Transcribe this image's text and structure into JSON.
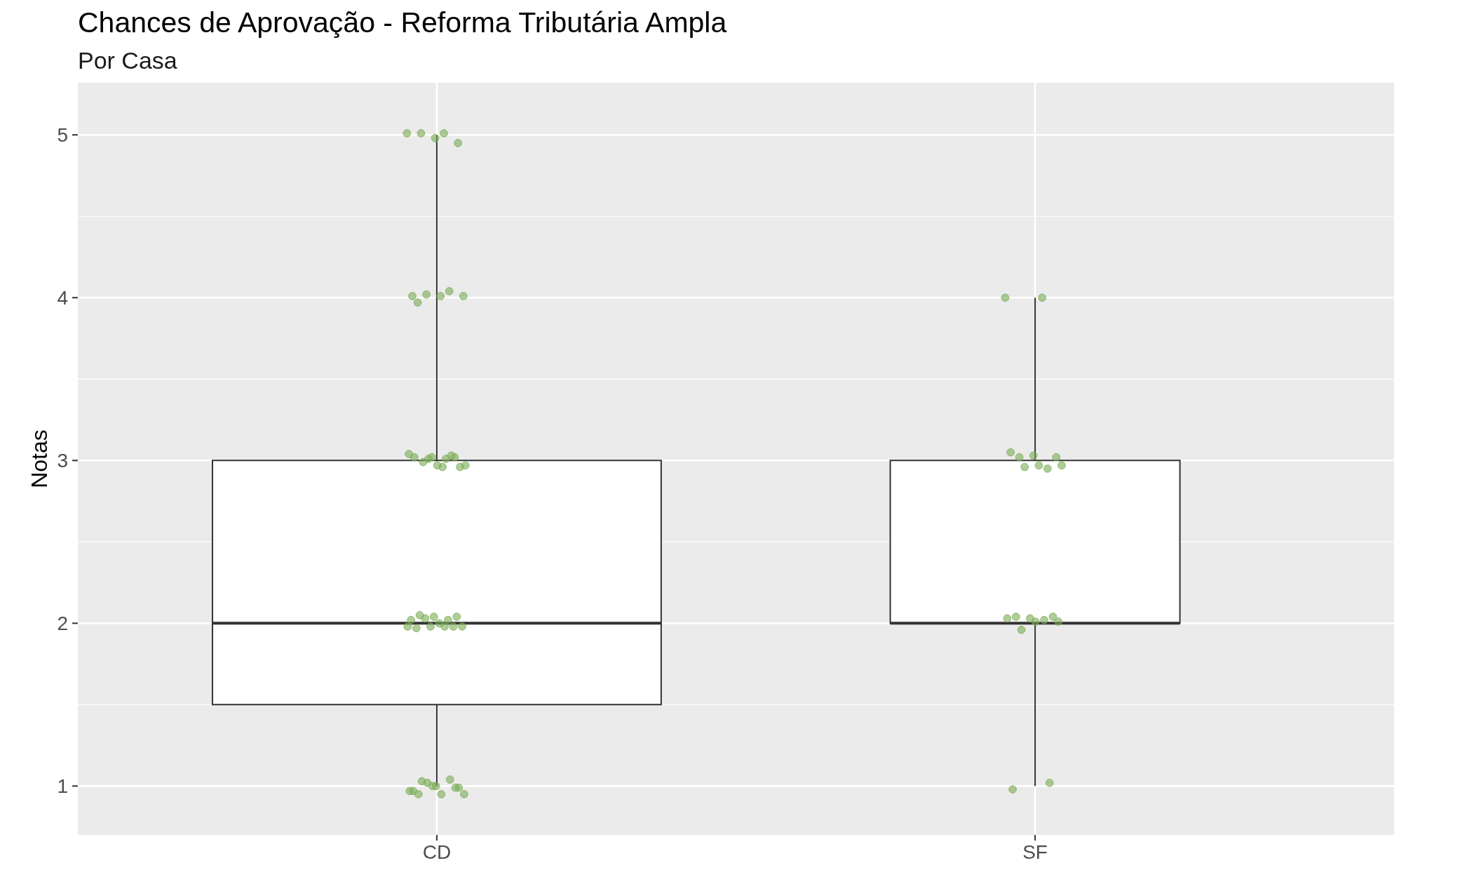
{
  "chart_data": {
    "type": "box",
    "title": "Chances de Aprovação - Reforma Tributária Ampla",
    "subtitle": "Por Casa",
    "ylabel": "Notas",
    "categories": [
      "CD",
      "SF"
    ],
    "boxes": [
      {
        "low": 1,
        "q1": 1.5,
        "median": 2,
        "q3": 3,
        "high": 5
      },
      {
        "low": 1,
        "q1": 2,
        "median": 2,
        "q3": 3,
        "high": 4
      }
    ],
    "series": [
      {
        "type": "scatter",
        "color": "#7aab55",
        "x": [
          "CD",
          "CD",
          "CD",
          "CD",
          "CD",
          "CD",
          "CD",
          "CD",
          "CD",
          "CD",
          "CD",
          "CD",
          "CD",
          "CD",
          "CD",
          "CD",
          "CD",
          "CD",
          "CD",
          "CD",
          "CD",
          "CD",
          "CD",
          "CD",
          "CD",
          "CD",
          "CD",
          "CD",
          "CD",
          "CD",
          "CD",
          "CD",
          "CD",
          "CD",
          "CD",
          "CD",
          "CD",
          "CD",
          "CD",
          "CD",
          "CD",
          "CD",
          "CD",
          "CD",
          "CD",
          "CD",
          "CD",
          "CD",
          "SF",
          "SF",
          "SF",
          "SF",
          "SF",
          "SF",
          "SF",
          "SF",
          "SF",
          "SF",
          "SF",
          "SF",
          "SF",
          "SF",
          "SF",
          "SF",
          "SF",
          "SF",
          "SF",
          "SF"
        ],
        "values": [
          5.01,
          5.01,
          5.01,
          4.95,
          4.98,
          4.01,
          4.04,
          4.02,
          4.01,
          4.01,
          3.97,
          3.02,
          3.02,
          3.04,
          3.01,
          2.99,
          2.96,
          2.97,
          3.02,
          3.03,
          3.01,
          2.97,
          2.96,
          2.05,
          2.04,
          2.04,
          2.02,
          2.02,
          2.03,
          1.98,
          2.0,
          1.97,
          1.98,
          1.98,
          1.98,
          1.98,
          1.03,
          0.99,
          1.0,
          0.97,
          1.04,
          1.02,
          0.95,
          0.95,
          0.95,
          0.99,
          1.0,
          0.97,
          4.0,
          4.0,
          3.02,
          3.02,
          3.03,
          3.05,
          2.95,
          2.96,
          2.97,
          2.97,
          2.04,
          2.04,
          2.03,
          2.03,
          2.02,
          1.96,
          2.01,
          2.01,
          0.98,
          1.02
        ]
      }
    ],
    "ylim": [
      0.7,
      5.32
    ],
    "yticks": [
      1,
      2,
      3,
      4,
      5
    ],
    "grid": true,
    "marker": "circle"
  }
}
